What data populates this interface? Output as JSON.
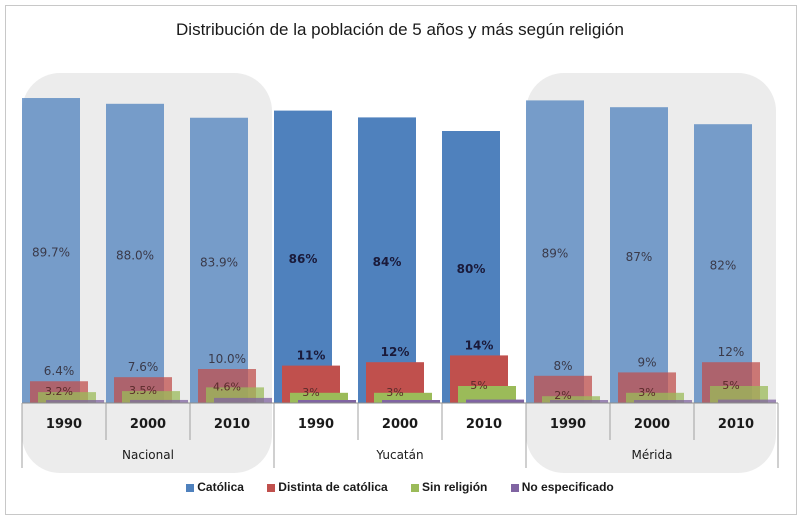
{
  "chart_data": {
    "type": "bar",
    "title": "Distribución de la población de 5 años y más según religión",
    "xlabel": "",
    "ylabel": "",
    "ylim": [
      0,
      100
    ],
    "grid": false,
    "legend_position": "bottom",
    "groups": [
      {
        "name": "Nacional",
        "highlighted": true,
        "years": [
          "1990",
          "2000",
          "2010"
        ],
        "labels": {
          "Católica": [
            "89.7%",
            "88.0%",
            "83.9%"
          ],
          "Distinta de católica": [
            "6.4%",
            "7.6%",
            "10.0%"
          ],
          "Sin religión": [
            "3.2%",
            "3.5%",
            "4.6%"
          ]
        }
      },
      {
        "name": "Yucatán",
        "highlighted": false,
        "years": [
          "1990",
          "2000",
          "2010"
        ],
        "labels": {
          "Católica": [
            "86%",
            "84%",
            "80%"
          ],
          "Distinta de católica": [
            "11%",
            "12%",
            "14%"
          ],
          "Sin religión": [
            "3%",
            "3%",
            "5%"
          ]
        }
      },
      {
        "name": "Mérida",
        "highlighted": true,
        "years": [
          "1990",
          "2000",
          "2010"
        ],
        "labels": {
          "Católica": [
            "89%",
            "87%",
            "82%"
          ],
          "Distinta de católica": [
            "8%",
            "9%",
            "12%"
          ],
          "Sin religión": [
            "2%",
            "3%",
            "5%"
          ]
        }
      }
    ],
    "series": [
      {
        "name": "Católica",
        "color": "#4f81bd",
        "values": [
          89.7,
          88.0,
          83.9,
          86,
          84,
          80,
          89,
          87,
          82
        ]
      },
      {
        "name": "Distinta de católica",
        "color": "#c0504d",
        "values": [
          6.4,
          7.6,
          10.0,
          11,
          12,
          14,
          8,
          9,
          12
        ]
      },
      {
        "name": "Sin religión",
        "color": "#9bbb59",
        "values": [
          3.2,
          3.5,
          4.6,
          3,
          3,
          5,
          2,
          3,
          5
        ]
      },
      {
        "name": "No especificado",
        "color": "#8064a2",
        "values": [
          0.7,
          0.9,
          1.5,
          0.3,
          0.5,
          1.0,
          0.5,
          0.7,
          1.0
        ]
      }
    ]
  },
  "legend": {
    "items": [
      {
        "label": "Católica",
        "color": "#4f81bd"
      },
      {
        "label": "Distinta de católica",
        "color": "#c0504d"
      },
      {
        "label": "Sin religión",
        "color": "#9bbb59"
      },
      {
        "label": "No especificado",
        "color": "#8064a2"
      }
    ]
  }
}
